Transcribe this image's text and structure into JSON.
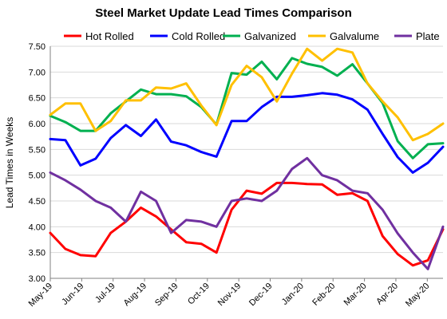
{
  "chart_data": {
    "type": "line",
    "title": "Steel Market Update Lead Times Comparison",
    "xlabel": "",
    "ylabel": "Lead Times in Weeks",
    "ylim": [
      3.0,
      7.5
    ],
    "yticks": [
      "3.00",
      "3.50",
      "4.00",
      "4.50",
      "5.00",
      "5.50",
      "6.00",
      "6.50",
      "7.00",
      "7.50"
    ],
    "xtick_labels": [
      "May-19",
      "Jun-19",
      "Jul-19",
      "Aug-19",
      "Sep-19",
      "Oct-19",
      "Nov-19",
      "Dec-19",
      "Jan-20",
      "Feb-20",
      "Mar-20",
      "Apr-20",
      "May-20"
    ],
    "grid": "horizontal",
    "legend_position": "top",
    "series": [
      {
        "name": "Hot Rolled",
        "color": "#ff0000",
        "values": [
          3.88,
          3.57,
          3.45,
          3.43,
          3.88,
          4.1,
          4.37,
          4.2,
          3.95,
          3.7,
          3.67,
          3.5,
          4.33,
          4.7,
          4.64,
          4.85,
          4.85,
          4.83,
          4.82,
          4.62,
          4.65,
          4.5,
          3.82,
          3.47,
          3.25,
          3.35,
          3.95
        ]
      },
      {
        "name": "Cold Rolled",
        "color": "#0000ff",
        "values": [
          5.7,
          5.68,
          5.19,
          5.32,
          5.72,
          5.97,
          5.76,
          6.08,
          5.65,
          5.58,
          5.45,
          5.36,
          6.05,
          6.05,
          6.32,
          6.52,
          6.52,
          6.55,
          6.59,
          6.56,
          6.47,
          6.27,
          5.8,
          5.35,
          5.05,
          5.24,
          5.55
        ]
      },
      {
        "name": "Galvanized",
        "color": "#00b050",
        "values": [
          6.15,
          6.03,
          5.86,
          5.86,
          6.2,
          6.43,
          6.66,
          6.57,
          6.57,
          6.53,
          6.32,
          5.98,
          6.98,
          6.95,
          7.2,
          6.86,
          7.27,
          7.16,
          7.1,
          6.93,
          7.15,
          6.78,
          6.4,
          5.66,
          5.33,
          5.6,
          5.62
        ]
      },
      {
        "name": "Galvalume",
        "color": "#ffc000",
        "values": [
          6.17,
          6.39,
          6.39,
          5.86,
          6.05,
          6.45,
          6.45,
          6.7,
          6.68,
          6.78,
          6.35,
          5.97,
          6.75,
          7.12,
          6.9,
          6.43,
          6.97,
          7.45,
          7.22,
          7.45,
          7.38,
          6.78,
          6.43,
          6.12,
          5.68,
          5.8,
          6.0
        ]
      },
      {
        "name": "Plate",
        "color": "#7030a0",
        "values": [
          5.05,
          4.9,
          4.72,
          4.5,
          4.37,
          4.1,
          4.68,
          4.5,
          3.88,
          4.13,
          4.1,
          4.0,
          4.5,
          4.55,
          4.5,
          4.7,
          5.12,
          5.33,
          5.0,
          4.9,
          4.7,
          4.65,
          4.33,
          3.87,
          3.5,
          3.18,
          4.0
        ]
      }
    ]
  }
}
